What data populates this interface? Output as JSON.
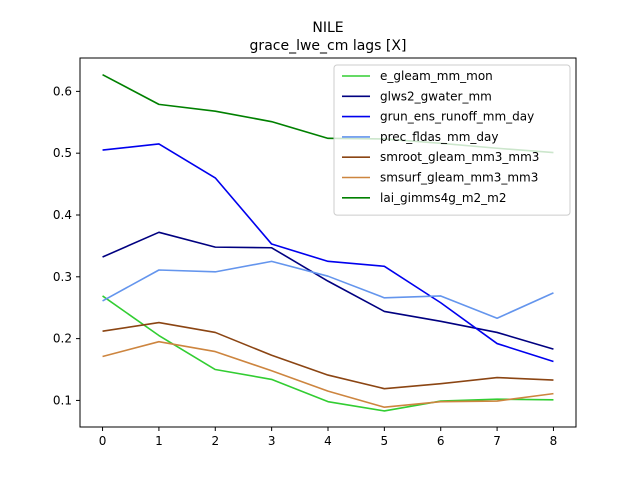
{
  "chart_data": {
    "type": "line",
    "title": "NILE",
    "subtitle": "grace_lwe_cm lags [X]",
    "xlabel": "",
    "ylabel": "",
    "x": [
      0,
      1,
      2,
      3,
      4,
      5,
      6,
      7,
      8
    ],
    "xlim": [
      -0.4,
      8.4
    ],
    "ylim": [
      0.057,
      0.654
    ],
    "xticks": [
      "0",
      "1",
      "2",
      "3",
      "4",
      "5",
      "6",
      "7",
      "8"
    ],
    "yticks": [
      0.1,
      0.2,
      0.3,
      0.4,
      0.5,
      0.6
    ],
    "ytick_labels": [
      "0.1",
      "0.2",
      "0.3",
      "0.4",
      "0.5",
      "0.6"
    ],
    "grid": false,
    "legend_position": "upper right",
    "series": [
      {
        "name": "e_gleam_mm_mon",
        "color": "#32cd32",
        "values": [
          0.269,
          0.205,
          0.15,
          0.134,
          0.098,
          0.083,
          0.099,
          0.102,
          0.101
        ]
      },
      {
        "name": "glws2_gwater_mm",
        "color": "#000080",
        "values": [
          0.332,
          0.372,
          0.348,
          0.347,
          0.293,
          0.244,
          0.228,
          0.21,
          0.183
        ]
      },
      {
        "name": "grun_ens_runoff_mm_day",
        "color": "#0000ee",
        "values": [
          0.505,
          0.515,
          0.46,
          0.353,
          0.325,
          0.317,
          0.258,
          0.192,
          0.163
        ]
      },
      {
        "name": "prec_fldas_mm_day",
        "color": "#6495ed",
        "values": [
          0.261,
          0.311,
          0.308,
          0.325,
          0.301,
          0.266,
          0.269,
          0.233,
          0.274
        ]
      },
      {
        "name": "smroot_gleam_mm3_mm3",
        "color": "#8b4513",
        "values": [
          0.212,
          0.226,
          0.21,
          0.173,
          0.141,
          0.119,
          0.127,
          0.137,
          0.133
        ]
      },
      {
        "name": "smsurf_gleam_mm3_mm3",
        "color": "#cd853f",
        "values": [
          0.171,
          0.195,
          0.179,
          0.148,
          0.115,
          0.089,
          0.098,
          0.099,
          0.111
        ]
      },
      {
        "name": "lai_gimms4g_m2_m2",
        "color": "#008000",
        "values": [
          0.627,
          0.579,
          0.568,
          0.551,
          0.524,
          0.523,
          0.516,
          0.508,
          0.501
        ]
      }
    ]
  }
}
